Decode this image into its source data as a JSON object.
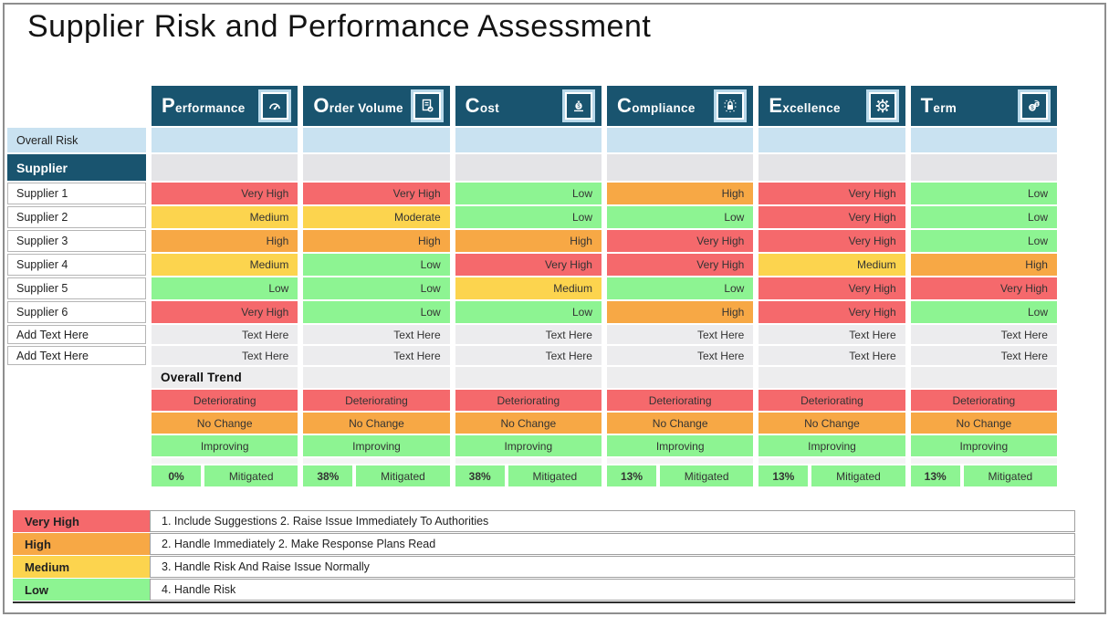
{
  "title": "Supplier Risk and Performance Assessment",
  "colors": {
    "header_blue": "#19546f",
    "light_blue": "#c9e2f1",
    "row_gray": "#e4e4e7",
    "trend_header_gray": "#ededee",
    "spacer_gray": "#f4f4f4",
    "add_text_bg": "#ececee",
    "very_high": "#f5696c",
    "high": "#f7a845",
    "medium": "#fcd44e",
    "low": "#8df492"
  },
  "columns": [
    {
      "label": "Performance",
      "icon": "gauge-icon"
    },
    {
      "label": "Order Volume",
      "icon": "document-check-icon"
    },
    {
      "label": "Cost",
      "icon": "money-bag-icon"
    },
    {
      "label": "Compliance",
      "icon": "compliance-lock-icon"
    },
    {
      "label": "Excellence",
      "icon": "gear-diamond-icon"
    },
    {
      "label": "Term",
      "icon": "coins-icon"
    }
  ],
  "rows": {
    "overall_risk_label": "Overall Risk",
    "supplier_header_label": "Supplier",
    "suppliers": [
      {
        "name": "Supplier 1",
        "values": [
          "Very High",
          "Very High",
          "Low",
          "High",
          "Very High",
          "Low"
        ]
      },
      {
        "name": "Supplier 2",
        "values": [
          "Medium",
          "Moderate",
          "Low",
          "Low",
          "Very High",
          "Low"
        ]
      },
      {
        "name": "Supplier 3",
        "values": [
          "High",
          "High",
          "High",
          "Very High",
          "Very High",
          "Low"
        ]
      },
      {
        "name": "Supplier 4",
        "values": [
          "Medium",
          "Low",
          "Very High",
          "Very High",
          "Medium",
          "High"
        ]
      },
      {
        "name": "Supplier 5",
        "values": [
          "Low",
          "Low",
          "Medium",
          "Low",
          "Very High",
          "Very High"
        ]
      },
      {
        "name": "Supplier 6",
        "values": [
          "Very High",
          "Low",
          "Low",
          "High",
          "Very High",
          "Low"
        ]
      }
    ],
    "add_text_rows": [
      {
        "name": "Add Text Here",
        "values": [
          "Text Here",
          "Text Here",
          "Text Here",
          "Text Here",
          "Text Here",
          "Text Here"
        ]
      },
      {
        "name": "Add Text Here",
        "values": [
          "Text Here",
          "Text Here",
          "Text Here",
          "Text Here",
          "Text Here",
          "Text Here"
        ]
      }
    ],
    "overall_trend_label": "Overall Trend",
    "trend_rows": [
      {
        "label": "Deteriorating",
        "level": "very_high"
      },
      {
        "label": "No Change",
        "level": "high"
      },
      {
        "label": "Improving",
        "level": "low"
      }
    ],
    "mitigated": {
      "label": "Mitigated",
      "percentages": [
        "0%",
        "38%",
        "38%",
        "13%",
        "13%",
        "13%"
      ]
    }
  },
  "value_levels": {
    "Very High": "very_high",
    "High": "high",
    "Medium": "medium",
    "Moderate": "medium",
    "Low": "low",
    "Text Here": "add_text"
  },
  "legend": [
    {
      "label": "Very High",
      "level": "very_high",
      "description": "1. Include Suggestions 2. Raise Issue Immediately To Authorities"
    },
    {
      "label": "High",
      "level": "high",
      "description": "2. Handle Immediately 2. Make Response Plans Read"
    },
    {
      "label": "Medium",
      "level": "medium",
      "description": "3. Handle Risk And Raise Issue Normally"
    },
    {
      "label": "Low",
      "level": "low",
      "description": "4. Handle Risk"
    }
  ]
}
